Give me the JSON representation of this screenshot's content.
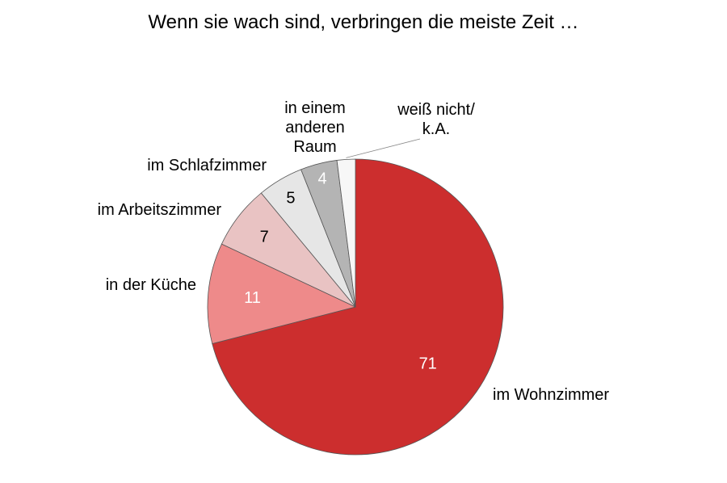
{
  "chart_data": {
    "type": "pie",
    "title": "Wenn sie wach sind, verbringen die meiste Zeit …",
    "start_angle_deg": 0,
    "direction": "clockwise",
    "slices": [
      {
        "label": "im Wohnzimmer",
        "label_lines": [
          "im Wohnzimmer"
        ],
        "value": 71,
        "value_text": "71",
        "color": "#cc2e2e",
        "value_color": "#ffffff"
      },
      {
        "label": "in der Küche",
        "label_lines": [
          "in der Küche"
        ],
        "value": 11,
        "value_text": "11",
        "color": "#ee8a8a",
        "value_color": "#ffffff"
      },
      {
        "label": "im Arbeitszimmer",
        "label_lines": [
          "im Arbeitszimmer"
        ],
        "value": 7,
        "value_text": "7",
        "color": "#e9c3c3",
        "value_color": "#000000"
      },
      {
        "label": "im Schlafzimmer",
        "label_lines": [
          "im Schlafzimmer"
        ],
        "value": 5,
        "value_text": "5",
        "color": "#e6e6e6",
        "value_color": "#000000"
      },
      {
        "label": "in einem anderen Raum",
        "label_lines": [
          "in einem",
          "anderen",
          "Raum"
        ],
        "value": 4,
        "value_text": "4",
        "color": "#b4b4b4",
        "value_color": "#ffffff"
      },
      {
        "label": "weiß nicht/ k.A.",
        "label_lines": [
          "weiß nicht/",
          "k.A."
        ],
        "value": 2,
        "value_text": "",
        "color": "#f7f7f7",
        "value_color": "#000000"
      }
    ]
  }
}
